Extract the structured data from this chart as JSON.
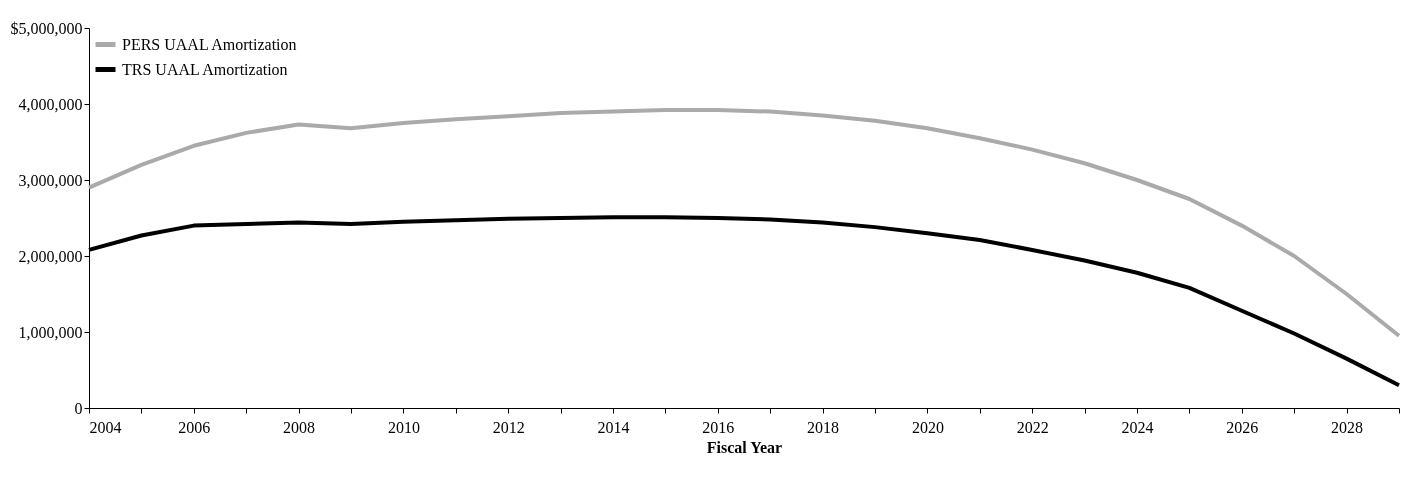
{
  "chart_data": {
    "type": "line",
    "xlabel": "Fiscal Year",
    "x": [
      2004,
      2005,
      2006,
      2007,
      2008,
      2009,
      2010,
      2011,
      2012,
      2013,
      2014,
      2015,
      2016,
      2017,
      2018,
      2019,
      2020,
      2021,
      2022,
      2023,
      2024,
      2025,
      2026,
      2027,
      2028,
      2029
    ],
    "series": [
      {
        "name": "PERS UAAL Amortization",
        "color": "#aaaaaa",
        "values": [
          2900000,
          3200000,
          3450000,
          3620000,
          3730000,
          3680000,
          3750000,
          3800000,
          3840000,
          3880000,
          3900000,
          3920000,
          3920000,
          3900000,
          3850000,
          3780000,
          3680000,
          3550000,
          3400000,
          3220000,
          3000000,
          2750000,
          2400000,
          2000000,
          1500000,
          950000
        ]
      },
      {
        "name": "TRS UAAL Amortization",
        "color": "#000000",
        "values": [
          2080000,
          2270000,
          2400000,
          2420000,
          2440000,
          2420000,
          2450000,
          2470000,
          2490000,
          2500000,
          2510000,
          2510000,
          2500000,
          2480000,
          2440000,
          2380000,
          2300000,
          2210000,
          2080000,
          1940000,
          1780000,
          1580000,
          1280000,
          980000,
          650000,
          300000
        ]
      }
    ],
    "xlim": [
      2004,
      2029
    ],
    "xticks": [
      2004,
      {
        "value": 2005,
        "label": null
      },
      2006,
      {
        "value": 2007,
        "label": null
      },
      2008,
      {
        "value": 2009,
        "label": null
      },
      2010,
      {
        "value": 2011,
        "label": null
      },
      2012,
      {
        "value": 2013,
        "label": null
      },
      2014,
      {
        "value": 2015,
        "label": null
      },
      2016,
      {
        "value": 2017,
        "label": null
      },
      2018,
      {
        "value": 2019,
        "label": null
      },
      2020,
      {
        "value": 2021,
        "label": null
      },
      2022,
      {
        "value": 2023,
        "label": null
      },
      2024,
      {
        "value": 2025,
        "label": null
      },
      2026,
      {
        "value": 2027,
        "label": null
      },
      2028,
      {
        "value": 2029,
        "label": null
      }
    ],
    "ylim": [
      0,
      5000000
    ],
    "yticks": [
      0,
      {
        "value": 1000000,
        "label": "1,000,000"
      },
      {
        "value": 2000000,
        "label": "2,000,000"
      },
      {
        "value": 3000000,
        "label": "3,000,000"
      },
      {
        "value": 4000000,
        "label": "4,000,000"
      },
      {
        "value": 5000000,
        "label": "$5,000,000"
      }
    ],
    "legend": "top left",
    "grid": false,
    "marker": "none",
    "line_style": "solid"
  }
}
